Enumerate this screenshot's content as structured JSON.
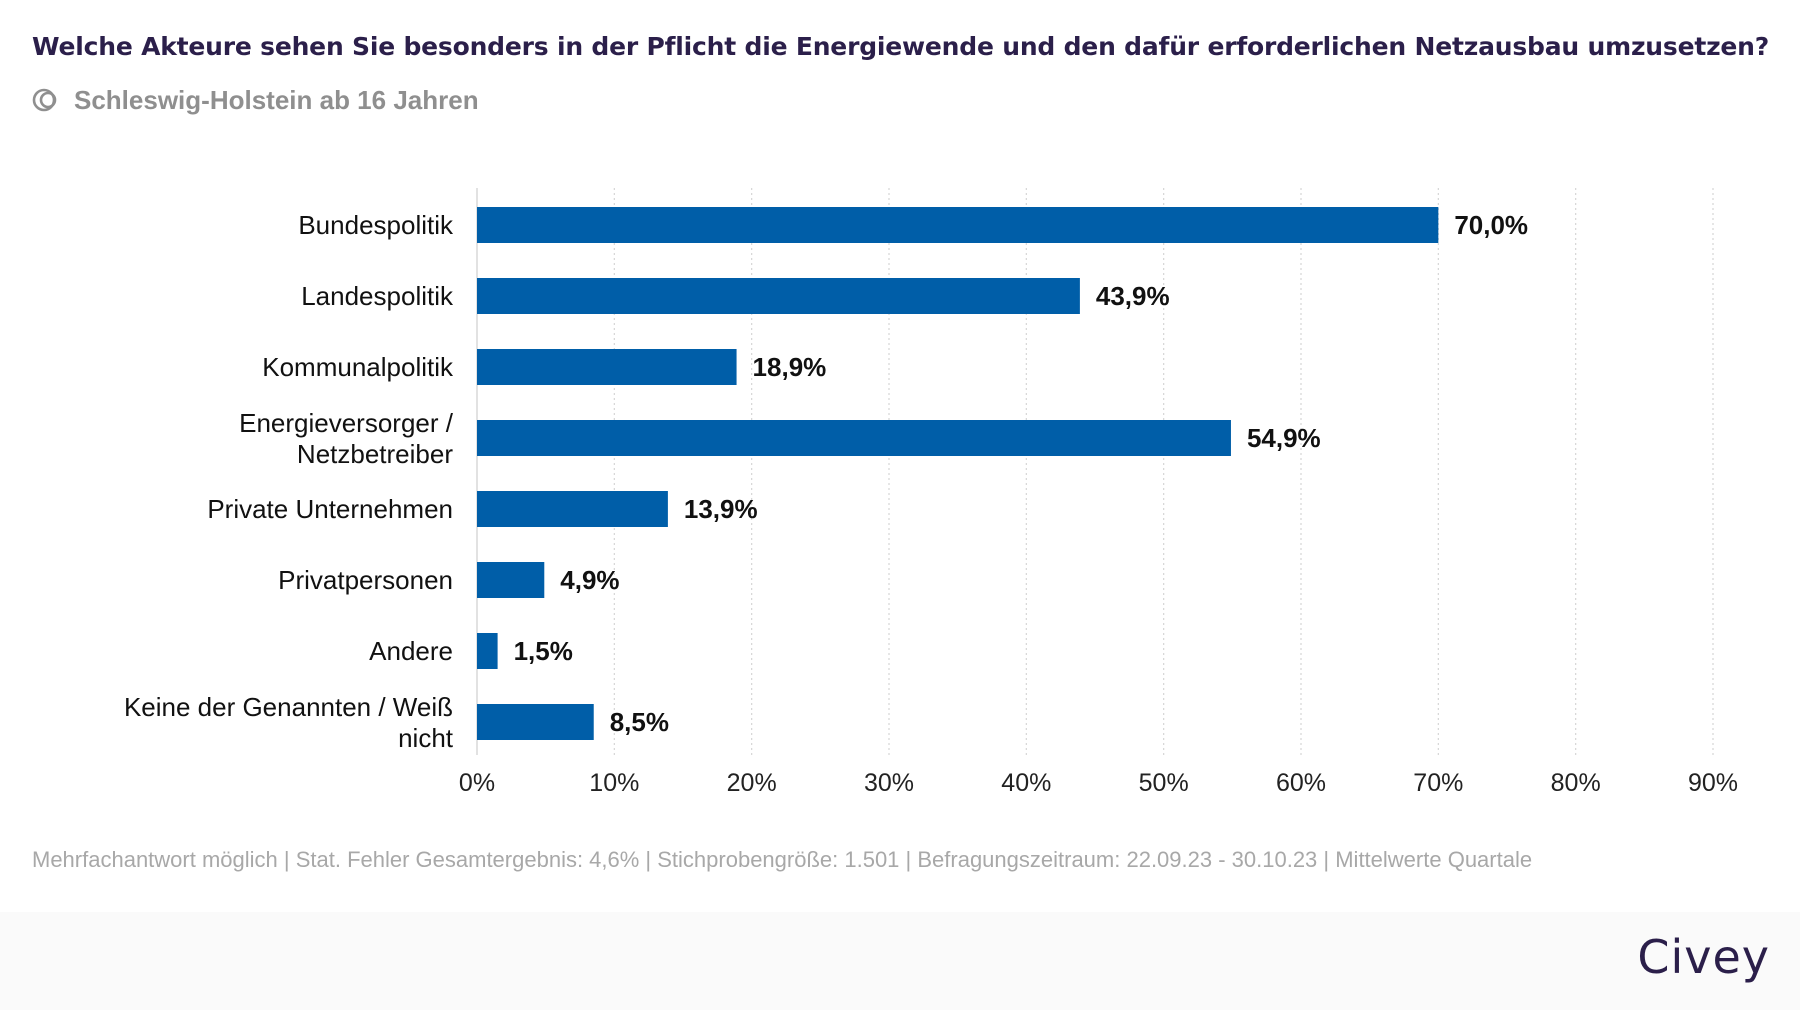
{
  "header": {
    "title": "Welche Akteure sehen Sie besonders in der Pflicht die Energiewende und den dafür erforderlichen Netzausbau umzusetzen?",
    "subtitle": "Schleswig-Holstein ab 16 Jahren"
  },
  "chart_data": {
    "type": "bar",
    "orientation": "horizontal",
    "categories": [
      "Bundespolitik",
      "Landespolitik",
      "Kommunalpolitik",
      "Energieversorger / Netzbetreiber",
      "Private Unternehmen",
      "Privatpersonen",
      "Andere",
      "Keine der Genannten / Weiß nicht"
    ],
    "values": [
      70.0,
      43.9,
      18.9,
      54.9,
      13.9,
      4.9,
      1.5,
      8.5
    ],
    "value_labels": [
      "70,0%",
      "43,9%",
      "18,9%",
      "54,9%",
      "13,9%",
      "4,9%",
      "1,5%",
      "8,5%"
    ],
    "xlim": [
      0,
      90
    ],
    "xticks": [
      0,
      10,
      20,
      30,
      40,
      50,
      60,
      70,
      80,
      90
    ],
    "xtick_labels": [
      "0%",
      "10%",
      "20%",
      "30%",
      "40%",
      "50%",
      "60%",
      "70%",
      "80%",
      "90%"
    ],
    "grid": "vertical-dotted",
    "bar_color": "#005ea8",
    "legend": "none"
  },
  "footer": {
    "note": "Mehrfachantwort möglich | Stat. Fehler Gesamtergebnis: 4,6% | Stichprobengröße: 1.501 | Befragungszeitraum: 22.09.23 - 30.10.23 | Mittelwerte Quartale",
    "brand": "Civey"
  },
  "icons": {
    "subtitle_icon": "population-icon"
  }
}
